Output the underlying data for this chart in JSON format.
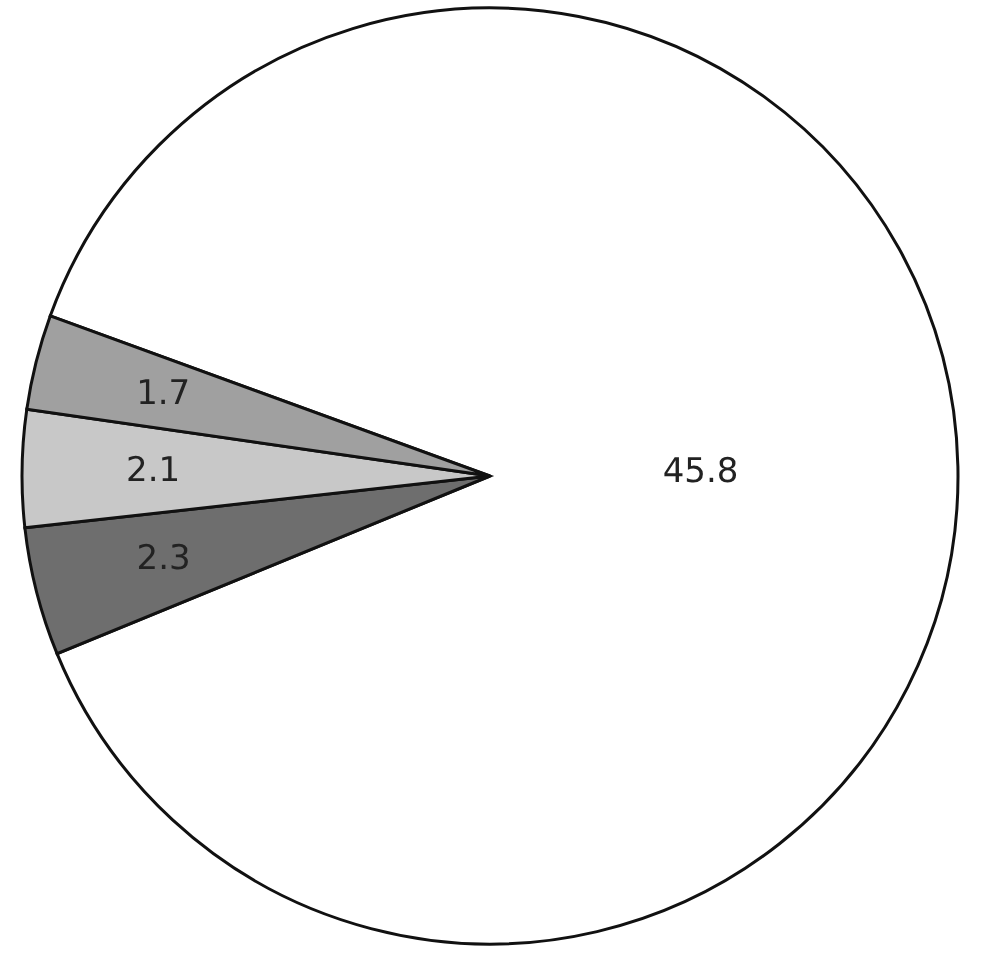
{
  "chart_data": {
    "type": "pie",
    "categories": [
      null,
      null,
      null,
      null
    ],
    "values": [
      45.8,
      2.3,
      2.1,
      1.7
    ],
    "colors": [
      "#ffffff",
      "#6e6e6e",
      "#c8c8c8",
      "#a0a0a0"
    ],
    "data_labels": true
  }
}
